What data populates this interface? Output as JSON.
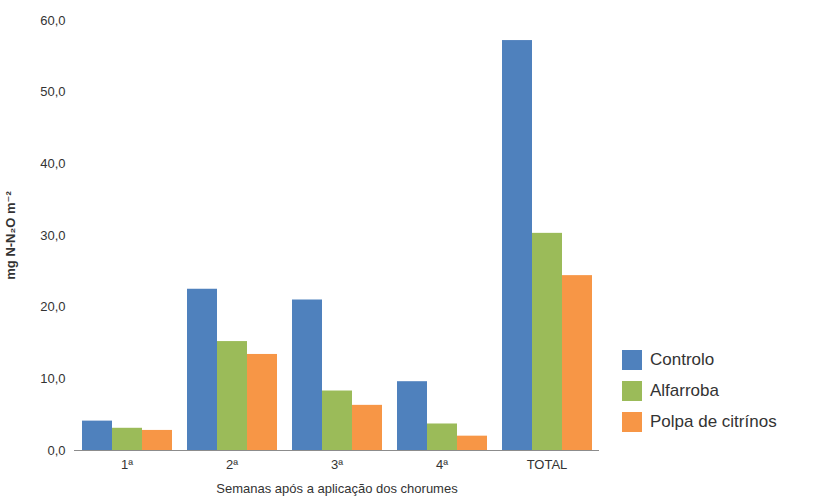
{
  "chart_data": {
    "type": "bar",
    "x_label": "Semanas após a aplicação dos chorumes",
    "y_label": "mg N-N₂O m⁻²",
    "categories": [
      "1ª",
      "2ª",
      "3ª",
      "4ª",
      "TOTAL"
    ],
    "series": [
      {
        "name": "Controlo",
        "color": "#4f81bd",
        "values": [
          4.1,
          22.5,
          21.0,
          9.6,
          57.2
        ]
      },
      {
        "name": "Alfarroba",
        "color": "#9bbb59",
        "values": [
          3.1,
          15.2,
          8.3,
          3.7,
          30.3
        ]
      },
      {
        "name": "Polpa de citrínos",
        "color": "#f79646",
        "values": [
          2.8,
          13.4,
          6.3,
          2.0,
          24.4
        ]
      }
    ],
    "ylim": [
      0,
      60
    ],
    "yticks": [
      {
        "value": 0,
        "label": "0,0"
      },
      {
        "value": 10,
        "label": "10,0"
      },
      {
        "value": 20,
        "label": "20,0"
      },
      {
        "value": 30,
        "label": "30,0"
      },
      {
        "value": 40,
        "label": "40,0"
      },
      {
        "value": 50,
        "label": "50,0"
      },
      {
        "value": 60,
        "label": "60,0"
      }
    ],
    "grid": false,
    "legend": "right"
  }
}
